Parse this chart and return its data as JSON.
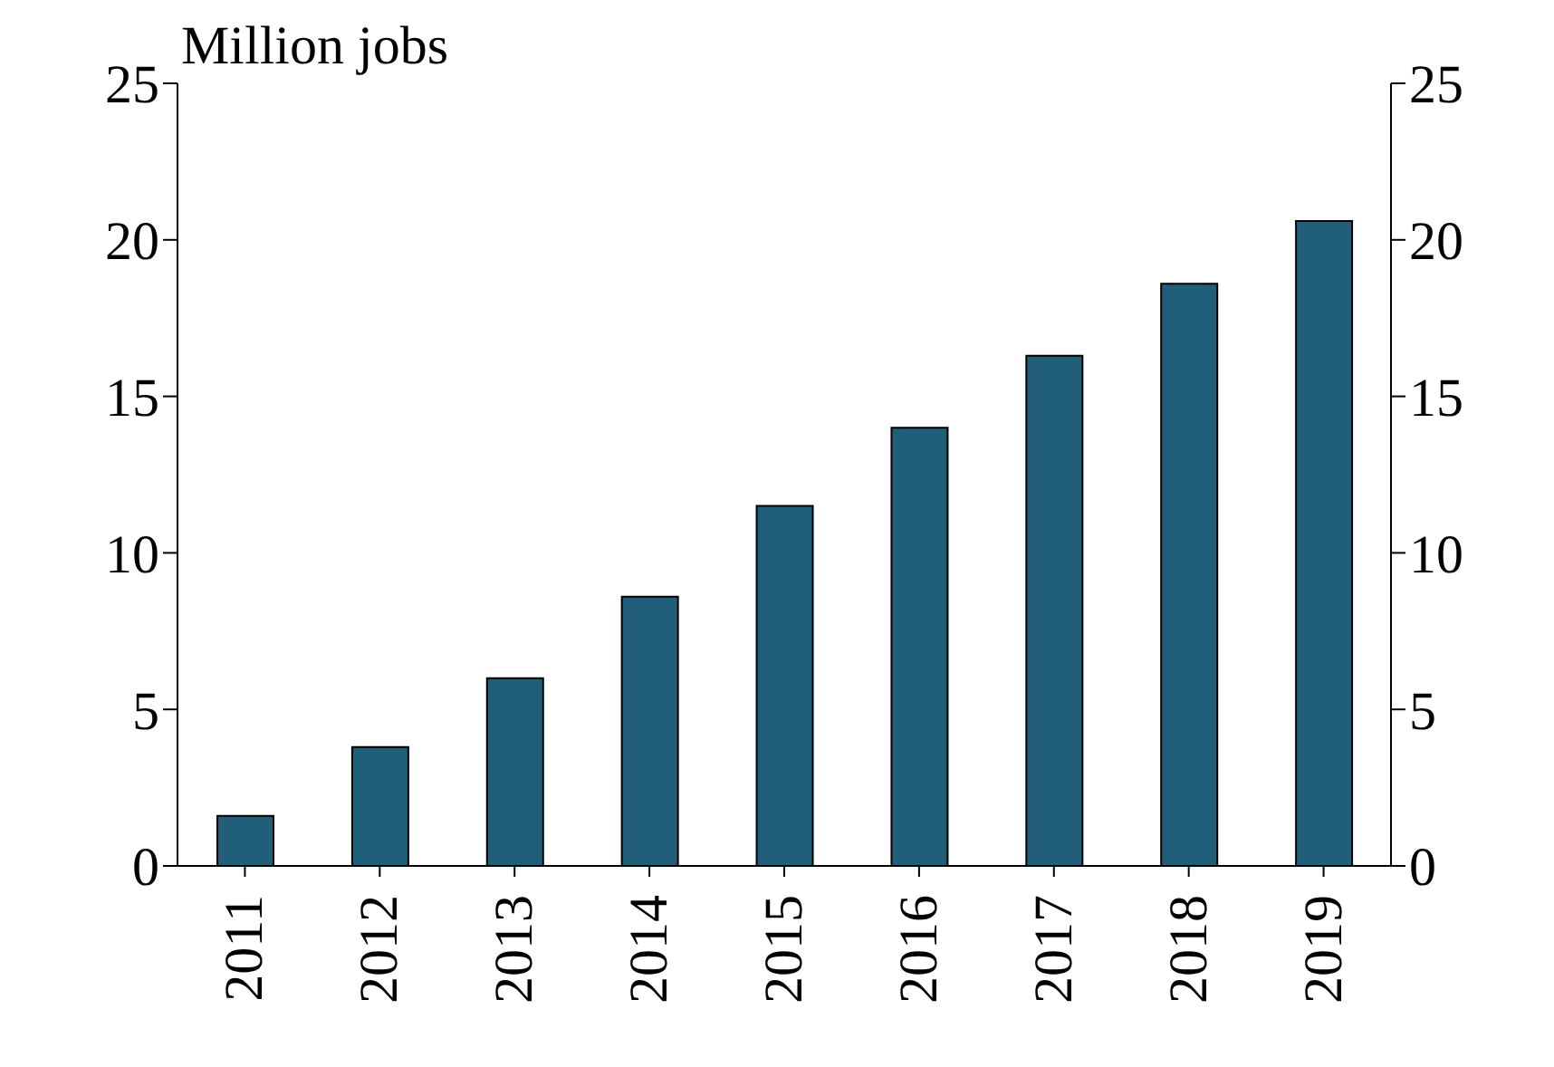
{
  "chart_data": {
    "type": "bar",
    "ylabel": "Million jobs",
    "categories": [
      "2011",
      "2012",
      "2013",
      "2014",
      "2015",
      "2016",
      "2017",
      "2018",
      "2019"
    ],
    "values": [
      1.6,
      3.8,
      6.0,
      8.6,
      11.5,
      14.0,
      16.3,
      18.6,
      20.6
    ],
    "color": "#215e7a",
    "ylim": [
      0,
      25
    ],
    "yticks": [
      0,
      5,
      10,
      15,
      20,
      25
    ],
    "y2lim": [
      0,
      25
    ],
    "y2ticks": [
      0,
      5,
      10,
      15,
      20,
      25
    ],
    "grid": false
  }
}
